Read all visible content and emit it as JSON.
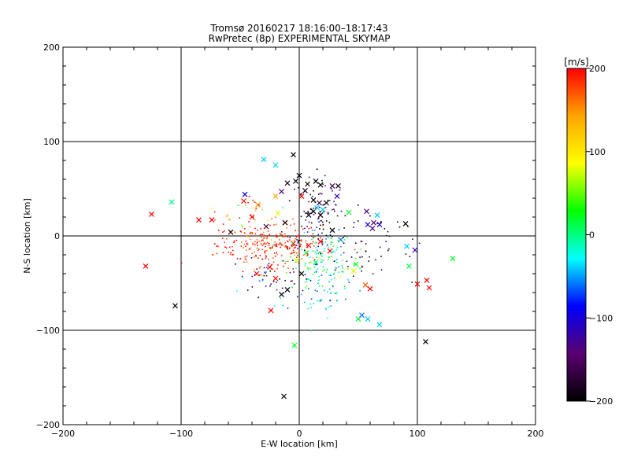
{
  "chart_data": {
    "type": "scatter",
    "title": "Tromsø 20160217 18:16:00–18:17:43",
    "subtitle": "RwPretec (8p) EXPERIMENTAL SKYMAP",
    "xlabel": "E-W location [km]",
    "ylabel": "N-S location [km]",
    "xlim": [
      -200,
      200
    ],
    "ylim": [
      -200,
      200
    ],
    "xticks": [
      -200,
      -100,
      0,
      100,
      200
    ],
    "yticks": [
      -200,
      -100,
      0,
      100,
      200
    ],
    "xtick_labels": [
      "−200",
      "−100",
      "0",
      "100",
      "200"
    ],
    "ytick_labels": [
      "−200",
      "−100",
      "0",
      "100",
      "200"
    ],
    "grid": true,
    "colorbar": {
      "label": "[m/s]",
      "range": [
        -200,
        200
      ],
      "ticks": [
        200,
        100,
        0,
        -100,
        -200
      ],
      "tick_labels": [
        "200",
        "100",
        "0",
        "−100",
        "−200"
      ],
      "colors": [
        "#000000",
        "#5a0070",
        "#0000ff",
        "#00ffff",
        "#00ff00",
        "#ffff00",
        "#ffa500",
        "#ff0000"
      ]
    },
    "crosses": [
      {
        "x": -125,
        "y": 23,
        "v": 200
      },
      {
        "x": -108,
        "y": 36,
        "v": 0
      },
      {
        "x": -130,
        "y": -32,
        "v": 200
      },
      {
        "x": -105,
        "y": -74,
        "v": -200
      },
      {
        "x": -85,
        "y": 17,
        "v": 200
      },
      {
        "x": -74,
        "y": 17,
        "v": 200
      },
      {
        "x": -58,
        "y": 4,
        "v": -200
      },
      {
        "x": -47,
        "y": 37,
        "v": 190
      },
      {
        "x": -46,
        "y": 44,
        "v": -90
      },
      {
        "x": -40,
        "y": 20,
        "v": 200
      },
      {
        "x": -30,
        "y": 81,
        "v": -40
      },
      {
        "x": -20,
        "y": 75,
        "v": -40
      },
      {
        "x": -35,
        "y": 33,
        "v": 150
      },
      {
        "x": -28,
        "y": 10,
        "v": -170
      },
      {
        "x": -20,
        "y": 42,
        "v": 140
      },
      {
        "x": -15,
        "y": 47,
        "v": -130
      },
      {
        "x": -10,
        "y": 56,
        "v": -180
      },
      {
        "x": -18,
        "y": 24,
        "v": 80
      },
      {
        "x": -12,
        "y": 14,
        "v": -200
      },
      {
        "x": -36,
        "y": -40,
        "v": 200
      },
      {
        "x": -25,
        "y": -33,
        "v": 200
      },
      {
        "x": -20,
        "y": -45,
        "v": 200
      },
      {
        "x": -15,
        "y": -62,
        "v": -200
      },
      {
        "x": -10,
        "y": -57,
        "v": -200
      },
      {
        "x": -24,
        "y": -79,
        "v": 200
      },
      {
        "x": -4,
        "y": -116,
        "v": 20
      },
      {
        "x": -13,
        "y": -170,
        "v": -200
      },
      {
        "x": -5,
        "y": 86,
        "v": -200
      },
      {
        "x": -3,
        "y": 58,
        "v": -190
      },
      {
        "x": 0,
        "y": 64,
        "v": -200
      },
      {
        "x": 2,
        "y": 42,
        "v": 200
      },
      {
        "x": 7,
        "y": 55,
        "v": -200
      },
      {
        "x": 14,
        "y": 58,
        "v": -200
      },
      {
        "x": 18,
        "y": 54,
        "v": -200
      },
      {
        "x": 12,
        "y": 38,
        "v": -200
      },
      {
        "x": 17,
        "y": 35,
        "v": -180
      },
      {
        "x": 12,
        "y": 26,
        "v": -200
      },
      {
        "x": 8,
        "y": 22,
        "v": -200
      },
      {
        "x": 18,
        "y": 22,
        "v": -200
      },
      {
        "x": 15,
        "y": 30,
        "v": -40
      },
      {
        "x": 20,
        "y": 28,
        "v": -40
      },
      {
        "x": 23,
        "y": 35,
        "v": -200
      },
      {
        "x": 5,
        "y": 48,
        "v": -190
      },
      {
        "x": 28,
        "y": 53,
        "v": -160
      },
      {
        "x": 33,
        "y": 53,
        "v": -180
      },
      {
        "x": 32,
        "y": 42,
        "v": -120
      },
      {
        "x": 42,
        "y": 25,
        "v": 20
      },
      {
        "x": 58,
        "y": 12,
        "v": -100
      },
      {
        "x": 63,
        "y": 14,
        "v": -140
      },
      {
        "x": 62,
        "y": 8,
        "v": -140
      },
      {
        "x": 57,
        "y": 26,
        "v": -140
      },
      {
        "x": 66,
        "y": 22,
        "v": -40
      },
      {
        "x": 68,
        "y": 12,
        "v": -100
      },
      {
        "x": 90,
        "y": 13,
        "v": -200
      },
      {
        "x": 98,
        "y": -15,
        "v": -120
      },
      {
        "x": 91,
        "y": -11,
        "v": -40
      },
      {
        "x": 93,
        "y": -32,
        "v": 10
      },
      {
        "x": 100,
        "y": -51,
        "v": 200
      },
      {
        "x": 108,
        "y": -47,
        "v": 200
      },
      {
        "x": 110,
        "y": -55,
        "v": 200
      },
      {
        "x": 130,
        "y": -24,
        "v": 20
      },
      {
        "x": 48,
        "y": -30,
        "v": 30
      },
      {
        "x": 46,
        "y": -37,
        "v": 80
      },
      {
        "x": 56,
        "y": -52,
        "v": 170
      },
      {
        "x": 60,
        "y": -56,
        "v": 200
      },
      {
        "x": 50,
        "y": -88,
        "v": 20
      },
      {
        "x": 53,
        "y": -84,
        "v": -60
      },
      {
        "x": 58,
        "y": -88,
        "v": -40
      },
      {
        "x": 68,
        "y": -94,
        "v": -40
      },
      {
        "x": 14,
        "y": -28,
        "v": 0
      },
      {
        "x": 6,
        "y": -18,
        "v": 20
      },
      {
        "x": 2,
        "y": -40,
        "v": -200
      },
      {
        "x": 18,
        "y": -6,
        "v": 200
      },
      {
        "x": 26,
        "y": -16,
        "v": 200
      },
      {
        "x": 8,
        "y": -10,
        "v": 200
      },
      {
        "x": -5,
        "y": -8,
        "v": 200
      },
      {
        "x": -2,
        "y": -26,
        "v": 80
      },
      {
        "x": 107,
        "y": -112,
        "v": -200
      },
      {
        "x": 35,
        "y": -4,
        "v": -60
      },
      {
        "x": 28,
        "y": 6,
        "v": -200
      }
    ]
  }
}
